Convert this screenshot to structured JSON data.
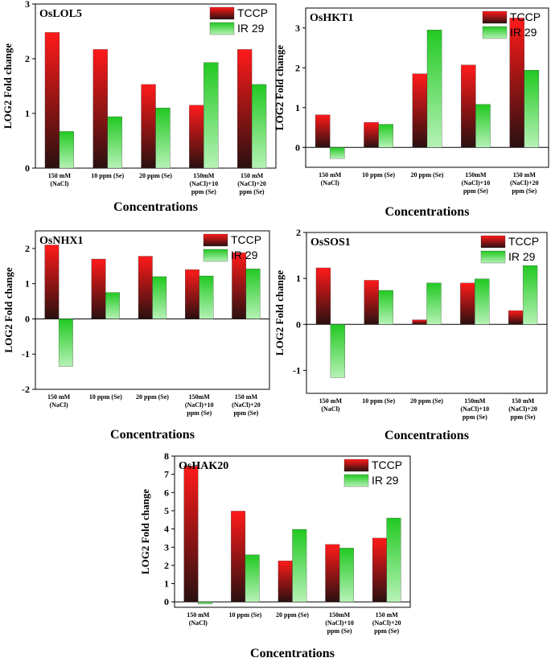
{
  "colors": {
    "tccp_top": "#ff1a1a",
    "tccp_bottom": "#2a1010",
    "ir29_top": "#22c922",
    "ir29_bottom": "#b6f2b6",
    "axis": "#000000"
  },
  "chart_data": [
    {
      "type": "bar",
      "title": "OsLOL5",
      "ylabel": "LOG2 Fold change",
      "xlabel": "Concentrations",
      "ylim": [
        0,
        3
      ],
      "yticks": [
        0,
        1,
        2,
        3
      ],
      "categories": [
        [
          "150 mM",
          "(NaCl)"
        ],
        [
          "10 ppm (Se)"
        ],
        [
          "20 ppm (Se)"
        ],
        [
          "150mM",
          "(NaCl)+10",
          "ppm (Se)"
        ],
        [
          "150 mM",
          "(NaCl)+20",
          "ppm (Se)"
        ]
      ],
      "series": [
        {
          "name": "TCCP",
          "values": [
            2.48,
            2.17,
            1.53,
            1.15,
            2.17
          ]
        },
        {
          "name": "IR 29",
          "values": [
            0.67,
            0.94,
            1.1,
            1.93,
            1.53
          ]
        }
      ],
      "legend": "top-right"
    },
    {
      "type": "bar",
      "title": "OsHKT1",
      "ylabel": "LOG2 Fold change",
      "xlabel": "Concentrations",
      "ylim": [
        -0.5,
        3.5
      ],
      "yticks": [
        0,
        1,
        2,
        3
      ],
      "categories": [
        [
          "150 mM",
          "(NaCl)"
        ],
        [
          "10 ppm (Se)"
        ],
        [
          "20 ppm (Se)"
        ],
        [
          "150mM",
          "(NaCl)+10",
          "ppm (Se)"
        ],
        [
          "150 mM",
          "(NaCl)+20",
          "ppm (Se)"
        ]
      ],
      "series": [
        {
          "name": "TCCP",
          "values": [
            0.82,
            0.63,
            1.85,
            2.07,
            3.25
          ]
        },
        {
          "name": "IR 29",
          "values": [
            -0.28,
            0.58,
            2.95,
            1.08,
            1.94
          ]
        }
      ],
      "legend": "top-right"
    },
    {
      "type": "bar",
      "title": "OsNHX1",
      "ylabel": "LOG2 Fold change",
      "xlabel": "Concentrations",
      "ylim": [
        -2,
        2.5
      ],
      "yticks": [
        -2,
        -1,
        0,
        1,
        2
      ],
      "categories": [
        [
          "150 mM",
          "(NaCl)"
        ],
        [
          "10 ppm (Se)"
        ],
        [
          "20 ppm (Se)"
        ],
        [
          "150mM",
          "(NaCl)+10",
          "ppm (Se)"
        ],
        [
          "150 mM",
          "(NaCl)+20",
          "ppm (Se)"
        ]
      ],
      "series": [
        {
          "name": "TCCP",
          "values": [
            2.1,
            1.7,
            1.78,
            1.4,
            1.88
          ]
        },
        {
          "name": "IR 29",
          "values": [
            -1.35,
            0.75,
            1.2,
            1.22,
            1.42
          ]
        }
      ],
      "legend": "top-right"
    },
    {
      "type": "bar",
      "title": "OsSOS1",
      "ylabel": "LOG2 Fold change",
      "xlabel": "Concentrations",
      "ylim": [
        -1.5,
        2
      ],
      "yticks": [
        -1,
        0,
        1,
        2
      ],
      "categories": [
        [
          "150 mM",
          "(NaCl)"
        ],
        [
          "10 ppm (Se)"
        ],
        [
          "20 ppm (Se)"
        ],
        [
          "150mM",
          "(NaCl)+10",
          "ppm (Se)"
        ],
        [
          "150 mM",
          "(NaCl)+20",
          "ppm (Se)"
        ]
      ],
      "series": [
        {
          "name": "TCCP",
          "values": [
            1.23,
            0.96,
            0.1,
            0.9,
            0.3
          ]
        },
        {
          "name": "IR 29",
          "values": [
            -1.16,
            0.74,
            0.9,
            0.99,
            1.28
          ]
        }
      ],
      "legend": "top-right"
    },
    {
      "type": "bar",
      "title": "OsHAK20",
      "ylabel": "LOG2 Fold change",
      "xlabel": "Concentrations",
      "ylim": [
        -0.3,
        8
      ],
      "yticks": [
        0,
        1,
        2,
        3,
        4,
        5,
        6,
        7,
        8
      ],
      "categories": [
        [
          "150 mM",
          "(NaCl)"
        ],
        [
          "10 ppm (Se)"
        ],
        [
          "20 ppm (Se)"
        ],
        [
          "150mM",
          "(NaCl)+10",
          "ppm (Se)"
        ],
        [
          "150 mM",
          "(NaCl)+20",
          "ppm (Se)"
        ]
      ],
      "series": [
        {
          "name": "TCCP",
          "values": [
            7.45,
            4.98,
            2.25,
            3.15,
            3.5
          ]
        },
        {
          "name": "IR 29",
          "values": [
            -0.12,
            2.58,
            3.98,
            2.95,
            4.6
          ]
        }
      ],
      "legend": "top-right"
    }
  ]
}
